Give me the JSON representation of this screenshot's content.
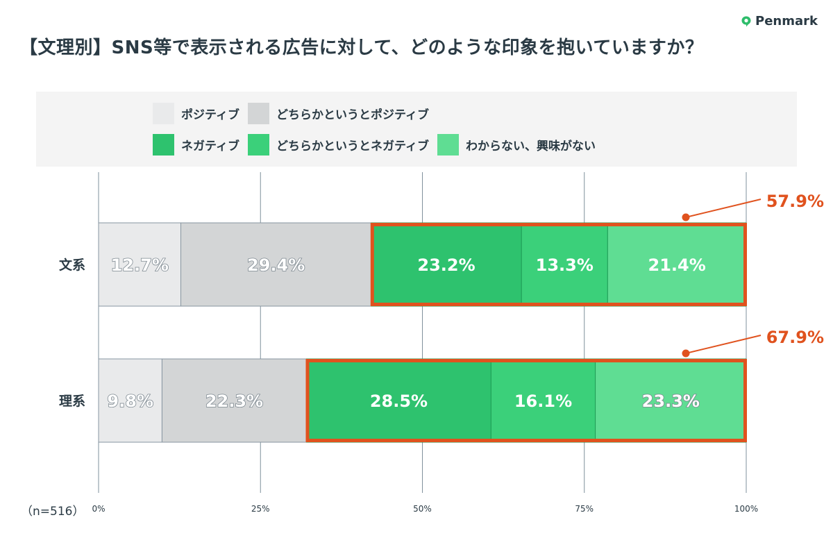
{
  "brand": {
    "name": "Penmark",
    "color": "#2ebd6b"
  },
  "chart_data": {
    "type": "bar",
    "orientation": "horizontal-stacked",
    "title": "【文理別】SNS等で表示される広告に対して、どのような印象を抱いていますか？",
    "categories": [
      "文系",
      "理系"
    ],
    "series": [
      {
        "name": "ポジティブ",
        "color": "#e9eaeb",
        "label_style": "outline",
        "values": [
          12.7,
          9.8
        ]
      },
      {
        "name": "どちらかというとポジティブ",
        "color": "#d3d5d6",
        "label_style": "outline",
        "values": [
          29.4,
          22.3
        ]
      },
      {
        "name": "ネガティブ",
        "color": "#2ec26e",
        "label_style": "solid",
        "values": [
          23.2,
          28.5
        ]
      },
      {
        "name": "どちらかというとネガティブ",
        "color": "#3bd07a",
        "label_style": "solid",
        "values": [
          13.3,
          16.1
        ]
      },
      {
        "name": "わからない、興味がない",
        "color": "#5fdd93",
        "label_style": "mixed",
        "values": [
          21.4,
          23.3
        ]
      }
    ],
    "value_labels": [
      [
        "12.7%",
        "29.4%",
        "23.2%",
        "13.3%",
        "21.4%"
      ],
      [
        "9.8%",
        "22.3%",
        "28.5%",
        "16.1%",
        "23.3%"
      ]
    ],
    "xlim": [
      0,
      100
    ],
    "x_ticks": [
      0,
      25,
      50,
      75,
      100
    ],
    "x_tick_labels": [
      "0%",
      "25%",
      "50%",
      "75%",
      "100%"
    ],
    "callouts": [
      {
        "category": "文系",
        "label": "57.9%",
        "value": 57.9,
        "highlight_from_series": 2
      },
      {
        "category": "理系",
        "label": "67.9%",
        "value": 67.9,
        "highlight_from_series": 2
      }
    ],
    "highlight_color": "#e0521e",
    "grid": true,
    "legend_position": "top",
    "legend_rows": [
      [
        0,
        1
      ],
      [
        2,
        3,
        4
      ]
    ],
    "sample_size": "（n=516）"
  }
}
